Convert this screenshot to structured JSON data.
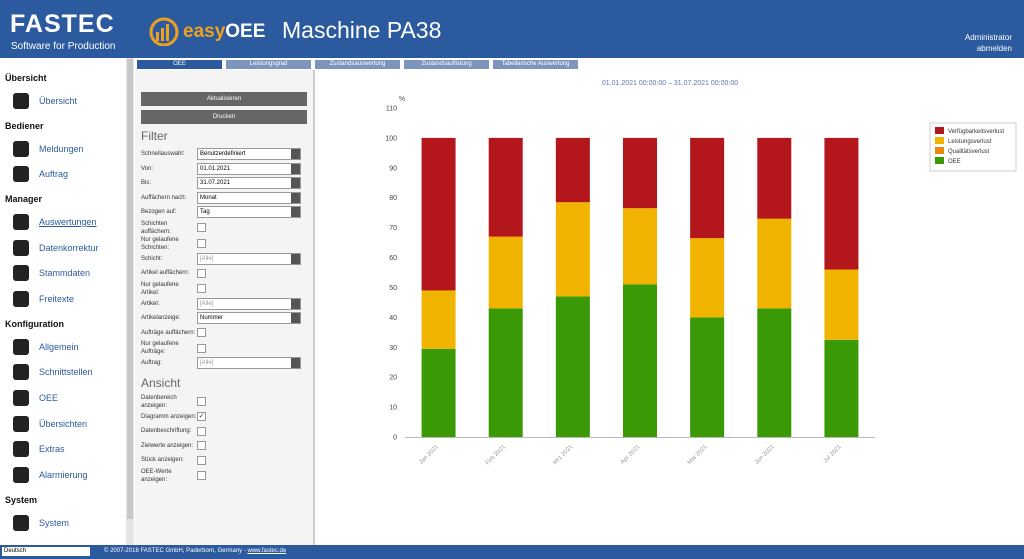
{
  "header": {
    "logo": "FASTEC",
    "logo_tagline": "Software for Production",
    "product_easy": "easy",
    "product_oee": "OEE",
    "title": "Maschine PA38",
    "user": "Administrator",
    "logout": "abmelden"
  },
  "sidebar": {
    "groups": [
      {
        "title": "Übersicht",
        "items": [
          "Übersicht"
        ]
      },
      {
        "title": "Bediener",
        "items": [
          "Meldungen",
          "Auftrag"
        ]
      },
      {
        "title": "Manager",
        "items": [
          "Auswertungen",
          "Datenkorrektur",
          "Stammdaten",
          "Freitexte"
        ],
        "active": 0
      },
      {
        "title": "Konfiguration",
        "items": [
          "Allgemein",
          "Schnittstellen",
          "OEE",
          "Übersichten",
          "Extras",
          "Alarmierung"
        ]
      },
      {
        "title": "System",
        "items": [
          "System"
        ]
      }
    ]
  },
  "tabs": {
    "items": [
      "OEE",
      "Leistungsgrad",
      "Zustandsauswertung",
      "Zustandsauflistung",
      "Tabellarische Auswertung"
    ],
    "active": 0
  },
  "filter": {
    "refresh": "Aktualisieren",
    "print": "Drucken",
    "title": "Filter",
    "rows": [
      {
        "label": "Schnellauswahl:",
        "value": "Benutzerdefiniert"
      },
      {
        "label": "Von:",
        "value": "01.01.2021"
      },
      {
        "label": "Bis:",
        "value": "31.07.2021"
      },
      {
        "label": "Auffächern nach:",
        "value": "Monat"
      },
      {
        "label": "Bezogen auf:",
        "value": "Tag"
      },
      {
        "label": "Schichten auffächern:",
        "checked": false
      },
      {
        "label": "Nur gelaufene Schichten:",
        "checked": false
      },
      {
        "label": "Schicht:",
        "value": "[Alle]",
        "disabled": true
      },
      {
        "label": "Artikel auffächern:",
        "checked": false
      },
      {
        "label": "Nur gelaufene Artikel:",
        "checked": false
      },
      {
        "label": "Artikel:",
        "value": "[Alle]",
        "disabled": true
      },
      {
        "label": "Artikelanzeige:",
        "value": "Nummer"
      },
      {
        "label": "Aufträge auffächern:",
        "checked": false
      },
      {
        "label": "Nur gelaufene Aufträge:",
        "checked": false
      },
      {
        "label": "Auftrag:",
        "value": "[Alle]",
        "disabled": true
      }
    ],
    "view_title": "Ansicht",
    "view_rows": [
      {
        "label": "Datenbereich anzeigen:",
        "checked": false
      },
      {
        "label": "Diagramm anzeigen:",
        "checked": true
      },
      {
        "label": "Datenbeschriftung:",
        "checked": false
      },
      {
        "label": "Zielwerte anzeigen:",
        "checked": false
      },
      {
        "label": "Stück anzeigen:",
        "checked": false
      },
      {
        "label": "OEE-Werte anzeigen:",
        "checked": false
      }
    ]
  },
  "chart_data": {
    "type": "stacked_bar",
    "subtitle": "01.01.2021 00:00:00 – 31.07.2021 00:00:00",
    "y_label": "%",
    "categories": [
      "Jan 2021",
      "Feb 2021",
      "Mrz 2021",
      "Apr 2021",
      "Mai 2021",
      "Jun 2021",
      "Jul 2021"
    ],
    "series": [
      {
        "name": "Verfügbarkeitsverlust",
        "color": "#b3161b",
        "values": [
          51,
          33,
          21.5,
          23.5,
          33.5,
          27,
          44
        ]
      },
      {
        "name": "Leistungsverlust",
        "color": "#f0b400",
        "values": [
          19.5,
          24,
          31.5,
          25.5,
          26.5,
          30,
          23.5
        ]
      },
      {
        "name": "Qualitätsverlust",
        "color": "#e8880c",
        "values": [
          0,
          0,
          0,
          0,
          0,
          0,
          0
        ]
      },
      {
        "name": "OEE",
        "color": "#3a9a06",
        "values": [
          29.5,
          43,
          47,
          51,
          40,
          43,
          32.5
        ]
      }
    ],
    "ylim": [
      0,
      110
    ],
    "yticks": [
      0,
      10,
      20,
      30,
      40,
      50,
      60,
      70,
      80,
      90,
      100,
      110
    ],
    "grid": false,
    "legend": "top-right"
  },
  "footer": {
    "language": "Deutsch",
    "copyright": "© 2007-2018 FASTEC GmbH, Paderborn, Germany - ",
    "link": "www.fastec.de"
  }
}
